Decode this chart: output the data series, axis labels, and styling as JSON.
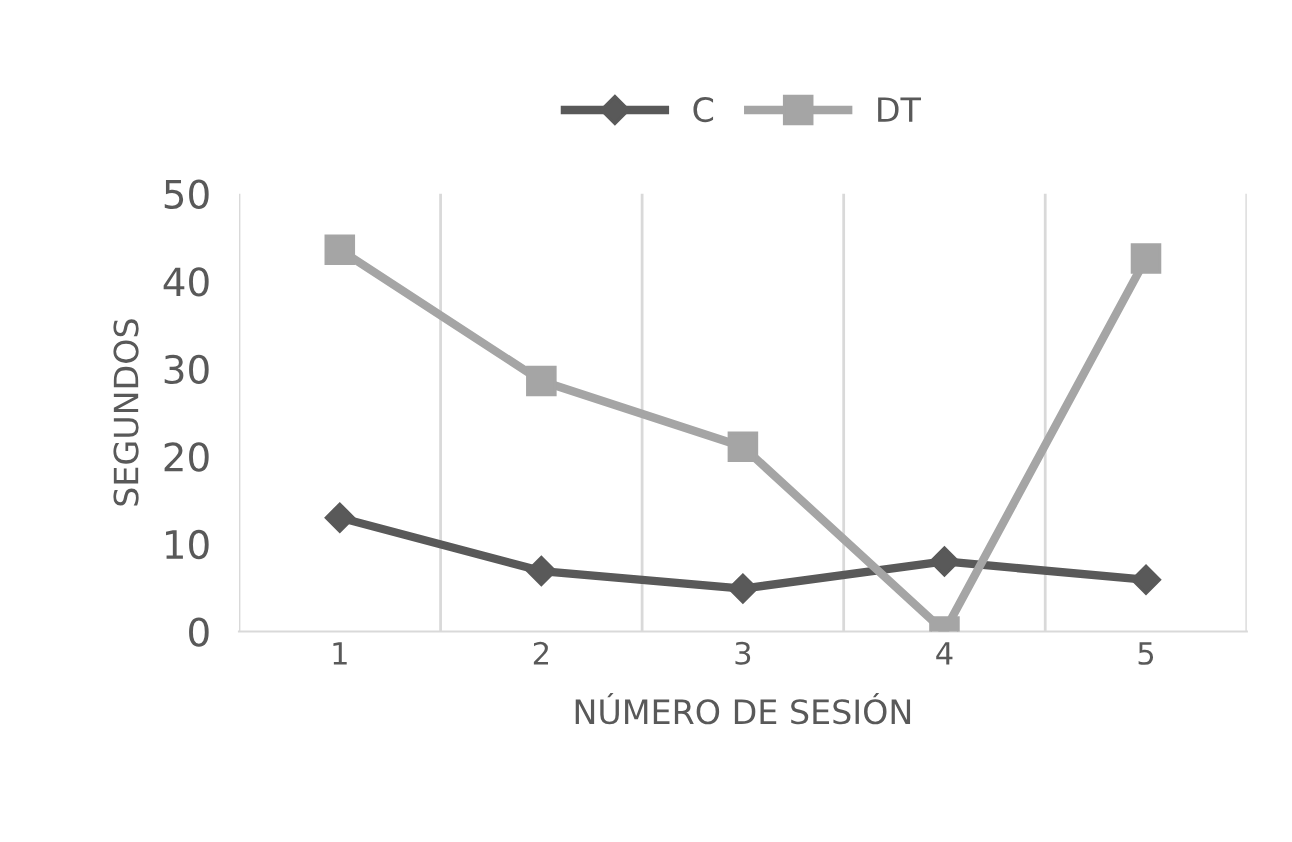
{
  "chart_data": {
    "type": "line",
    "xlabel": "NÚMERO DE SESIÓN",
    "ylabel": "SEGUNDOS",
    "categories": [
      "1",
      "2",
      "3",
      "4",
      "5"
    ],
    "series": [
      {
        "name": "C",
        "color": "#595959",
        "marker": "diamond",
        "values": [
          13,
          6.9,
          4.9,
          8,
          5.9
        ]
      },
      {
        "name": "DT",
        "color": "#a5a5a5",
        "marker": "square",
        "values": [
          43.6,
          28.6,
          21.1,
          0,
          42.6
        ]
      }
    ],
    "ylim": [
      0,
      50
    ],
    "yticks": [
      0,
      10,
      20,
      30,
      40,
      50
    ],
    "grid": "x",
    "legend": "top",
    "line_style": "solid"
  }
}
